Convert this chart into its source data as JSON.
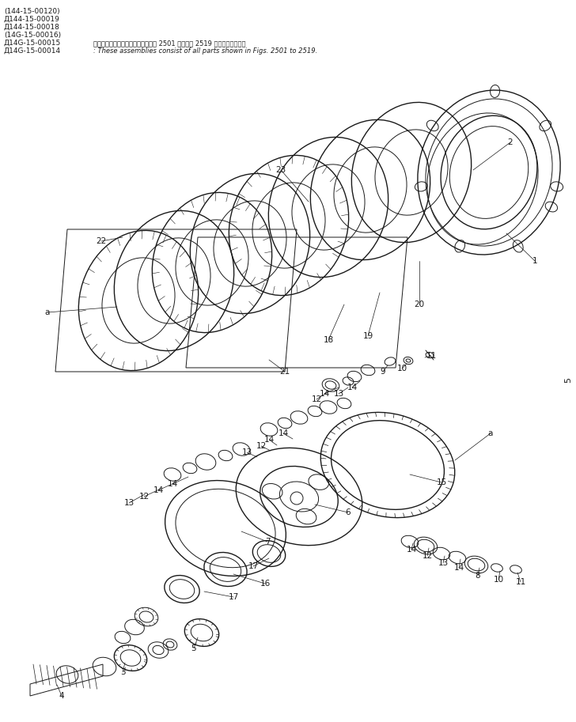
{
  "background_color": "#ffffff",
  "fig_width": 7.28,
  "fig_height": 9.13,
  "dpi": 100,
  "line_color": "#1a1a1a",
  "header_lines": [
    "(144-15-00120)",
    "Д144-15-00019",
    "Д144-15-00018",
    "(14G-15-00016)",
    "Д14G-15-00015",
    "Д14G-15-00014"
  ],
  "header_note_ja": "これらのアセンブリの構成部品は第 2501 図から第 2519 図まで含みます。",
  "header_note_en": ": These assemblies consist of all parts shown in Figs. 2501 to 2519.",
  "side_text": "5"
}
